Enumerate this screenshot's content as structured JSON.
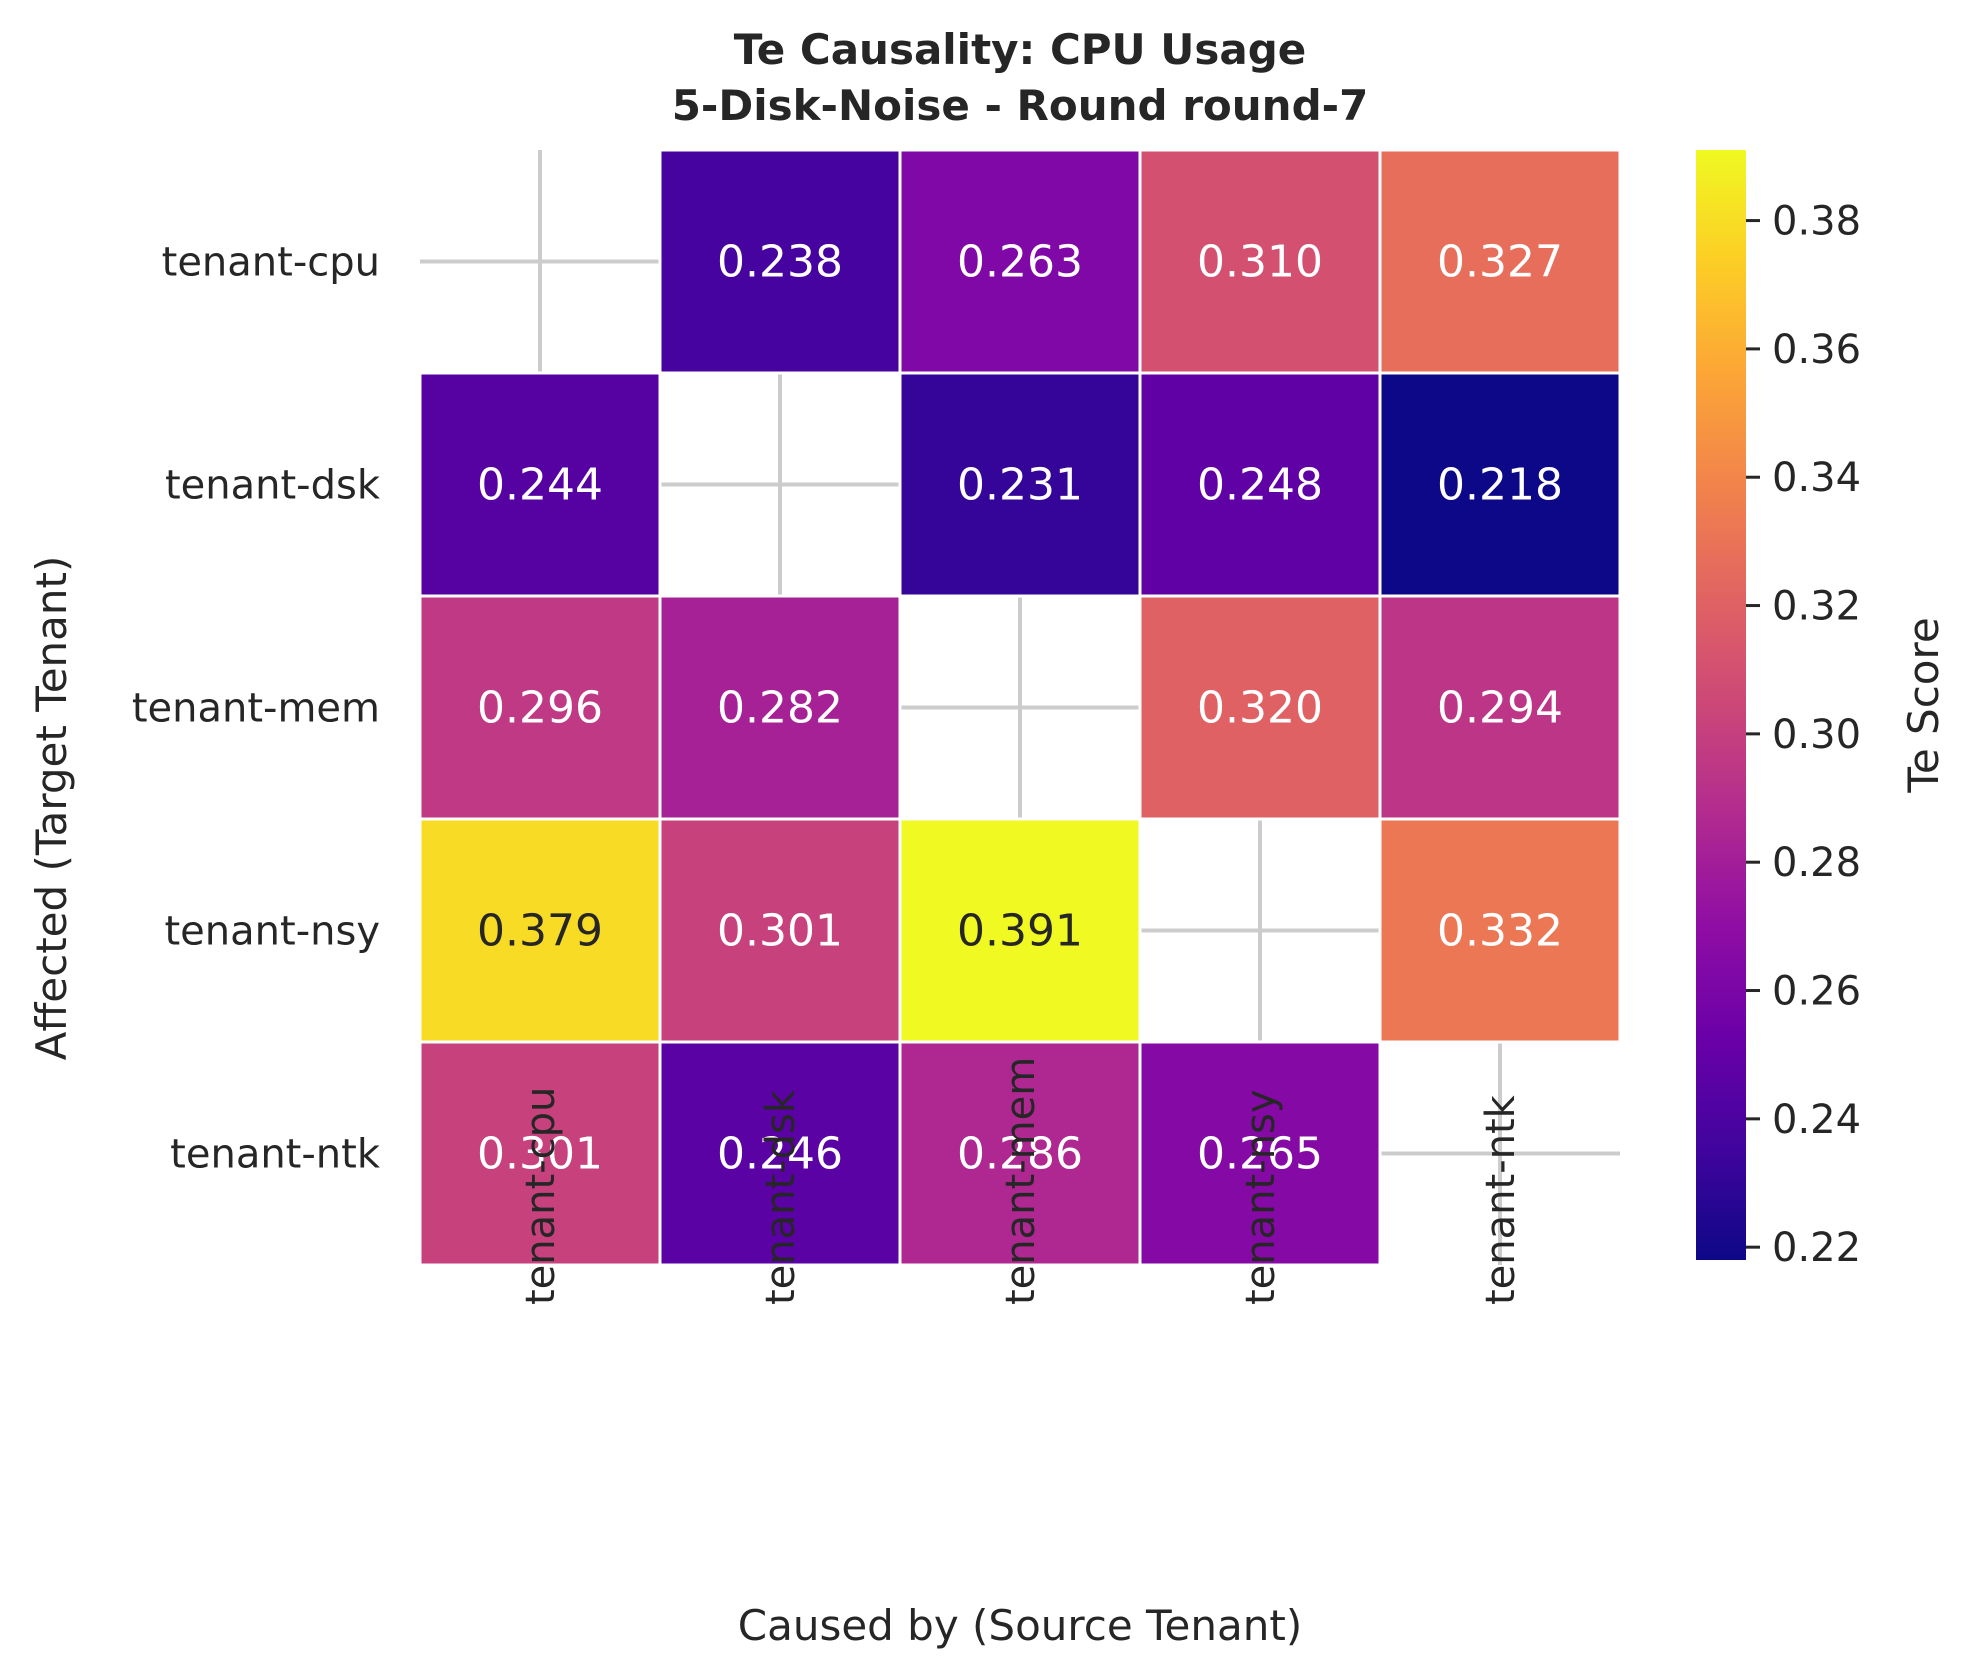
{
  "chart_data": {
    "type": "heatmap",
    "title": "Te Causality: CPU Usage",
    "subtitle": "5-Disk-Noise - Round round-7",
    "xlabel": "Caused by (Source Tenant)",
    "ylabel": "Affected (Target Tenant)",
    "x_categories": [
      "tenant-cpu",
      "tenant-dsk",
      "tenant-mem",
      "tenant-nsy",
      "tenant-ntk"
    ],
    "y_categories": [
      "tenant-cpu",
      "tenant-dsk",
      "tenant-mem",
      "tenant-nsy",
      "tenant-ntk"
    ],
    "values": [
      [
        null,
        0.238,
        0.263,
        0.31,
        0.327
      ],
      [
        0.244,
        null,
        0.231,
        0.248,
        0.218
      ],
      [
        0.296,
        0.282,
        null,
        0.32,
        0.294
      ],
      [
        0.379,
        0.301,
        0.391,
        null,
        0.332
      ],
      [
        0.301,
        0.246,
        0.286,
        0.265,
        null
      ]
    ],
    "value_format": "0.000",
    "colorbar": {
      "label": "Te Score",
      "range": [
        0.218,
        0.391
      ],
      "ticks": [
        0.22,
        0.24,
        0.26,
        0.28,
        0.3,
        0.32,
        0.34,
        0.36,
        0.38
      ],
      "tick_labels": [
        "0.22",
        "0.24",
        "0.26",
        "0.28",
        "0.30",
        "0.32",
        "0.34",
        "0.36",
        "0.38"
      ]
    },
    "colormap": "plasma",
    "grid": true,
    "missing_cells": "diagonal left blank"
  },
  "colors": {
    "grid_line": "#cccccc",
    "text_dark": "#262626",
    "text_light": "#ffffff",
    "cell_border": "#ffffff"
  }
}
